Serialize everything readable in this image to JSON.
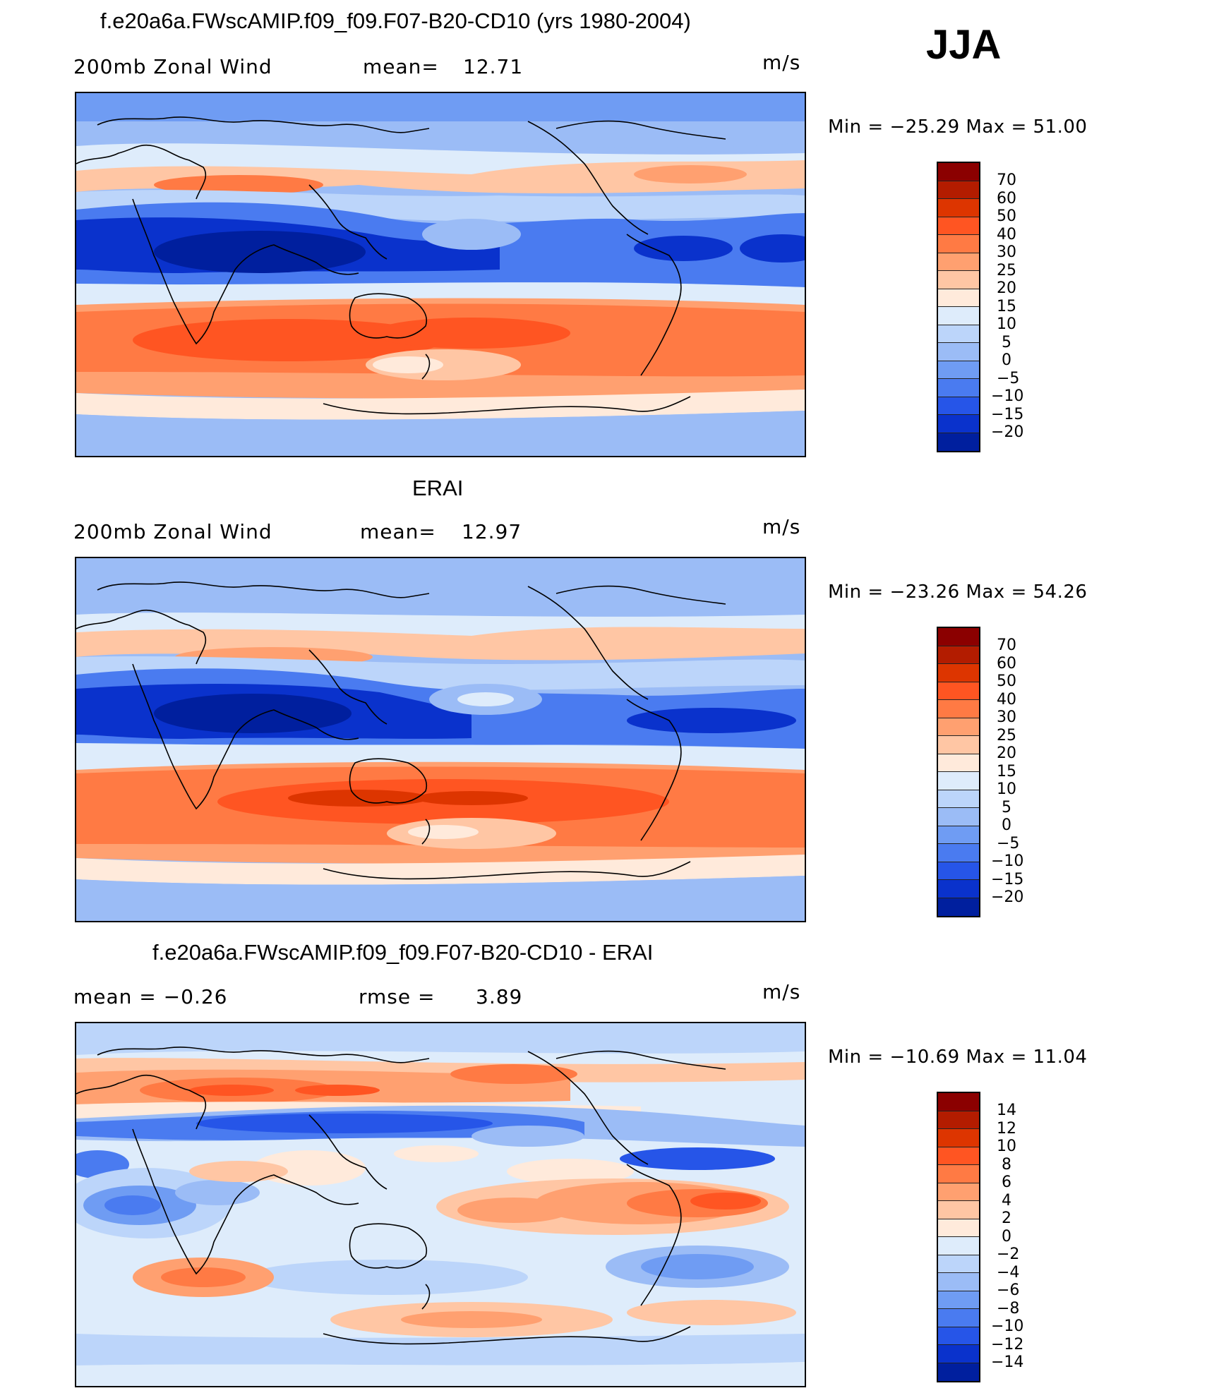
{
  "season": "JJA",
  "units": "m/s",
  "palette_main": [
    "#8b0000",
    "#b31c00",
    "#dd3500",
    "#ff5522",
    "#ff7a44",
    "#ffa070",
    "#ffc6a4",
    "#ffeadb",
    "#deecfb",
    "#bcd5fa",
    "#9bbcf6",
    "#6f9cf3",
    "#4a7bf0",
    "#2655e8",
    "#0a32cc",
    "#001f9e",
    "#000e73"
  ],
  "palette_diff": [
    "#8b0000",
    "#b31c00",
    "#dd3500",
    "#ff5522",
    "#ff7a44",
    "#ffa070",
    "#ffc6a4",
    "#ffeadb",
    "#deecfb",
    "#bcd5fa",
    "#9bbcf6",
    "#6f9cf3",
    "#4a7bf0",
    "#2655e8",
    "#0a32cc",
    "#001f9e",
    "#000e73"
  ],
  "panels": [
    {
      "title": "f.e20a6a.FWscAMIP.f09_f09.F07-B20-CD10 (yrs 1980-2004)",
      "left_label": "200mb  Zonal  Wind",
      "stat_label": "mean=",
      "stat_value": "12.71",
      "units": "m/s",
      "min_label": "Min  =  −25.29  Max  =    51.00",
      "colorbar_labels": [
        "70",
        "60",
        "50",
        "40",
        "30",
        "25",
        "20",
        "15",
        "10",
        "5",
        "0",
        "−5",
        "−10",
        "−15",
        "−20"
      ]
    },
    {
      "title": "ERAI",
      "left_label": "200mb  Zonal  Wind",
      "stat_label": "mean=",
      "stat_value": "12.97",
      "units": "m/s",
      "min_label": "Min  =  −23.26  Max  =    54.26",
      "colorbar_labels": [
        "70",
        "60",
        "50",
        "40",
        "30",
        "25",
        "20",
        "15",
        "10",
        "5",
        "0",
        "−5",
        "−10",
        "−15",
        "−20"
      ]
    },
    {
      "title": "f.e20a6a.FWscAMIP.f09_f09.F07-B20-CD10 - ERAI",
      "left_label": "mean  =    −0.26",
      "stat_label": "rmse  =",
      "stat_value": "3.89",
      "units": "m/s",
      "min_label": "Min  =  −10.69  Max  =    11.04",
      "colorbar_labels": [
        "14",
        "12",
        "10",
        "8",
        "6",
        "4",
        "2",
        "0",
        "−2",
        "−4",
        "−6",
        "−8",
        "−10",
        "−12",
        "−14"
      ]
    }
  ]
}
